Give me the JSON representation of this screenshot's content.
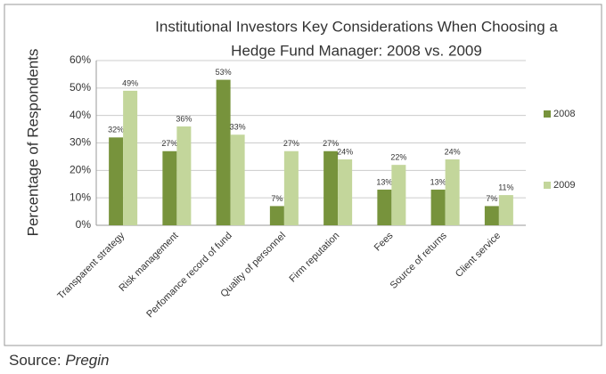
{
  "chart_data": {
    "type": "bar",
    "title_lines": [
      "Institutional Investors Key Considerations When Choosing a",
      "Hedge Fund Manager: 2008 vs. 2009"
    ],
    "y_label": "Percentage of Respondents",
    "categories": [
      "Transparent strategy",
      "Risk management",
      "Perfomance record of fund",
      "Quality of personnel",
      "Firm reputation",
      "Fees",
      "Source of returns",
      "Client service"
    ],
    "series": [
      {
        "name": "2008",
        "color": "#77933c",
        "values": [
          32,
          27,
          53,
          7,
          27,
          13,
          13,
          7
        ],
        "value_labels": [
          "32%",
          "27%",
          "53%",
          "7%",
          "27%",
          "13%",
          "13%",
          "7%"
        ]
      },
      {
        "name": "2009",
        "color": "#c3d69b",
        "values": [
          49,
          36,
          33,
          27,
          24,
          22,
          24,
          11
        ],
        "value_labels": [
          "49%",
          "36%",
          "33%",
          "27%",
          "24%",
          "22%",
          "24%",
          "11%"
        ]
      }
    ],
    "ylim": [
      0,
      60
    ],
    "yticks": [
      {
        "value": 0,
        "label": "0%"
      },
      {
        "value": 10,
        "label": "10%"
      },
      {
        "value": 20,
        "label": "20%"
      },
      {
        "value": 30,
        "label": "30%"
      },
      {
        "value": 40,
        "label": "40%"
      },
      {
        "value": 50,
        "label": "50%"
      },
      {
        "value": 60,
        "label": "60%"
      }
    ],
    "grid": true,
    "legend": "right",
    "source_label": "Source:",
    "source_name": "Pregin"
  }
}
